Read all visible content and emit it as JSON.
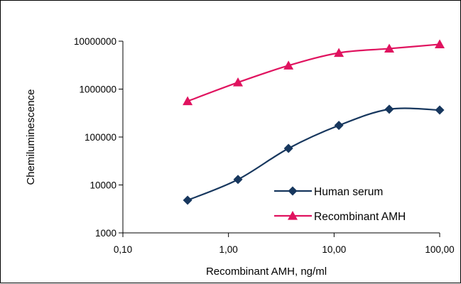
{
  "chart_data": {
    "type": "line",
    "xlabel": "Recombinant AMH, ng/ml",
    "ylabel": "Chemiluminescence",
    "x_scale": "log",
    "y_scale": "log",
    "xlim": [
      0.1,
      100
    ],
    "ylim": [
      1000,
      10000000
    ],
    "x_ticks": [
      0.1,
      1,
      10,
      100
    ],
    "x_tick_labels": [
      "0,10",
      "1,00",
      "10,00",
      "100,00"
    ],
    "y_ticks": [
      1000,
      10000,
      100000,
      1000000,
      10000000
    ],
    "y_tick_labels": [
      "1000",
      "10000",
      "100000",
      "1000000",
      "10000000"
    ],
    "grid": false,
    "legend_position": "bottom-right",
    "series": [
      {
        "name": "Human serum",
        "color": "#17375e",
        "marker": "diamond",
        "x": [
          0.41,
          1.23,
          3.7,
          11.1,
          33.3,
          100
        ],
        "y": [
          4800,
          13000,
          58000,
          175000,
          380000,
          365000
        ]
      },
      {
        "name": "Recombinant AMH",
        "color": "#e0135f",
        "marker": "triangle",
        "x": [
          0.41,
          1.23,
          3.7,
          11.1,
          33.3,
          100
        ],
        "y": [
          560000,
          1380000,
          3100000,
          5700000,
          7000000,
          8600000
        ]
      }
    ]
  }
}
